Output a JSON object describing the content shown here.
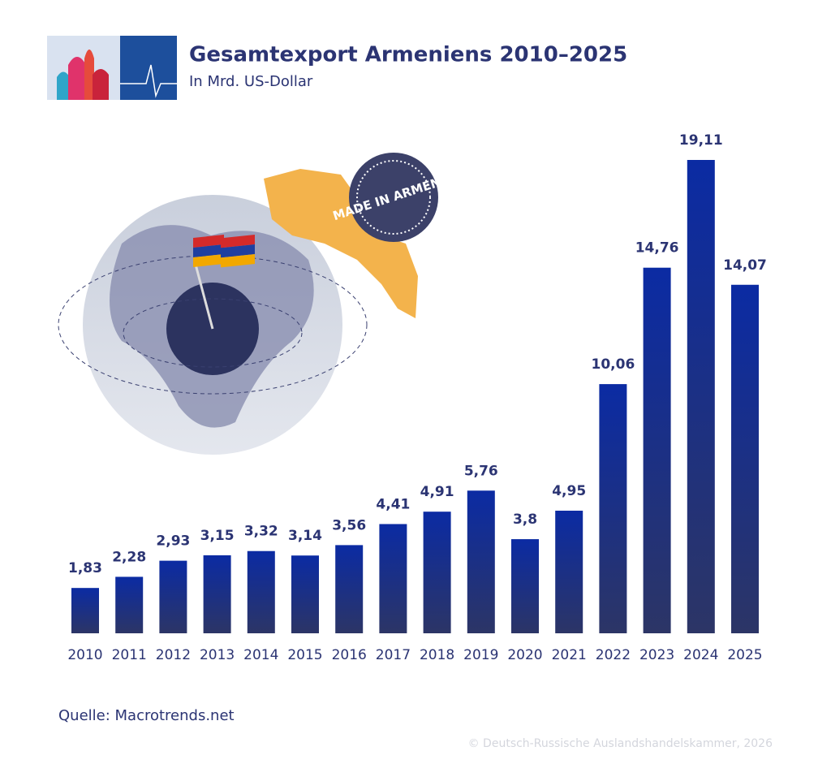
{
  "chart_data": {
    "type": "bar",
    "title": "Gesamtexport Armeniens 2010–2025",
    "subtitle": "In Mrd. US-Dollar",
    "categories": [
      "2010",
      "2011",
      "2012",
      "2013",
      "2014",
      "2015",
      "2016",
      "2017",
      "2018",
      "2019",
      "2020",
      "2021",
      "2022",
      "2023",
      "2024",
      "2025"
    ],
    "values": [
      1.83,
      2.28,
      2.93,
      3.15,
      3.32,
      3.14,
      3.56,
      4.41,
      4.91,
      5.76,
      3.8,
      4.95,
      10.06,
      14.76,
      19.11,
      14.07
    ],
    "value_labels": [
      "1,83",
      "2,28",
      "2,93",
      "3,15",
      "3,32",
      "3,14",
      "3,56",
      "4,41",
      "4,91",
      "5,76",
      "3,8",
      "4,95",
      "10,06",
      "14,76",
      "19,11",
      "14,07"
    ],
    "color": "#0b2ba3",
    "annotation": "MADE IN ARMENIA",
    "source": "Quelle: Macrotrends.net",
    "copyright": "© Deutsch-Russische Auslandshandelskammer, 2026"
  }
}
